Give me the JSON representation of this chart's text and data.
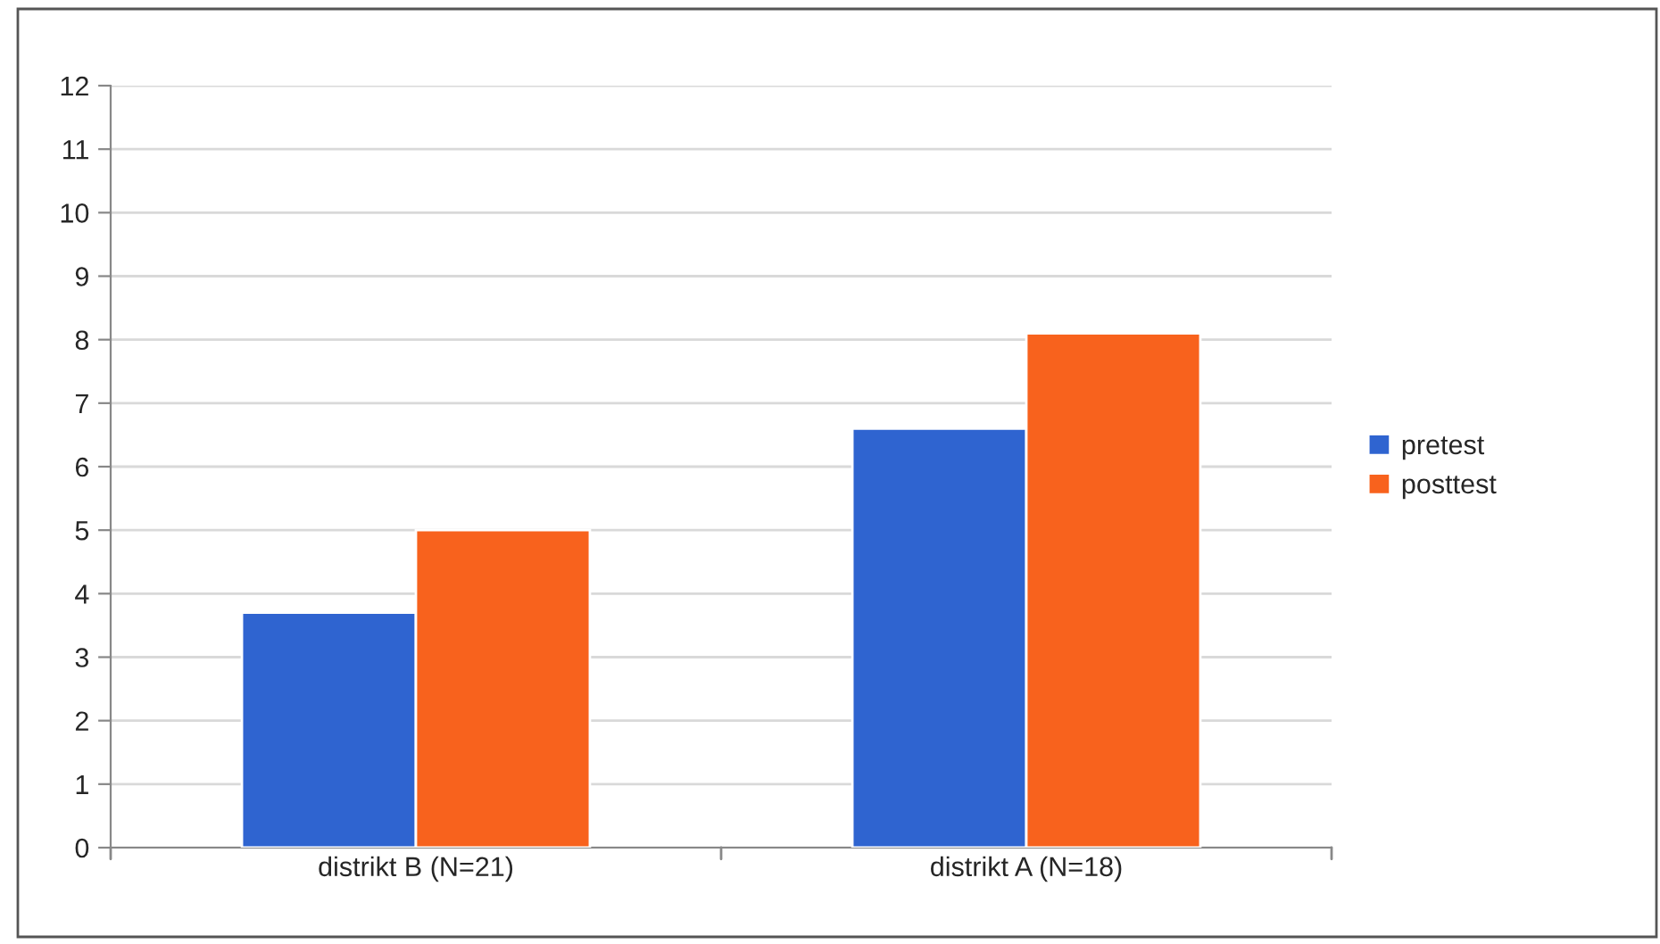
{
  "chart_data": {
    "type": "bar",
    "categories": [
      "distrikt B (N=21)",
      "distrikt A (N=18)"
    ],
    "series": [
      {
        "name": "pretest",
        "color": "#2f64d0",
        "values": [
          3.7,
          6.6
        ]
      },
      {
        "name": "posttest",
        "color": "#f8621d",
        "values": [
          5.0,
          8.1
        ]
      }
    ],
    "ylim": [
      0,
      12
    ],
    "yticks": [
      0,
      1,
      2,
      3,
      4,
      5,
      6,
      7,
      8,
      9,
      10,
      11,
      12
    ],
    "grid": "y",
    "legend": "right"
  }
}
